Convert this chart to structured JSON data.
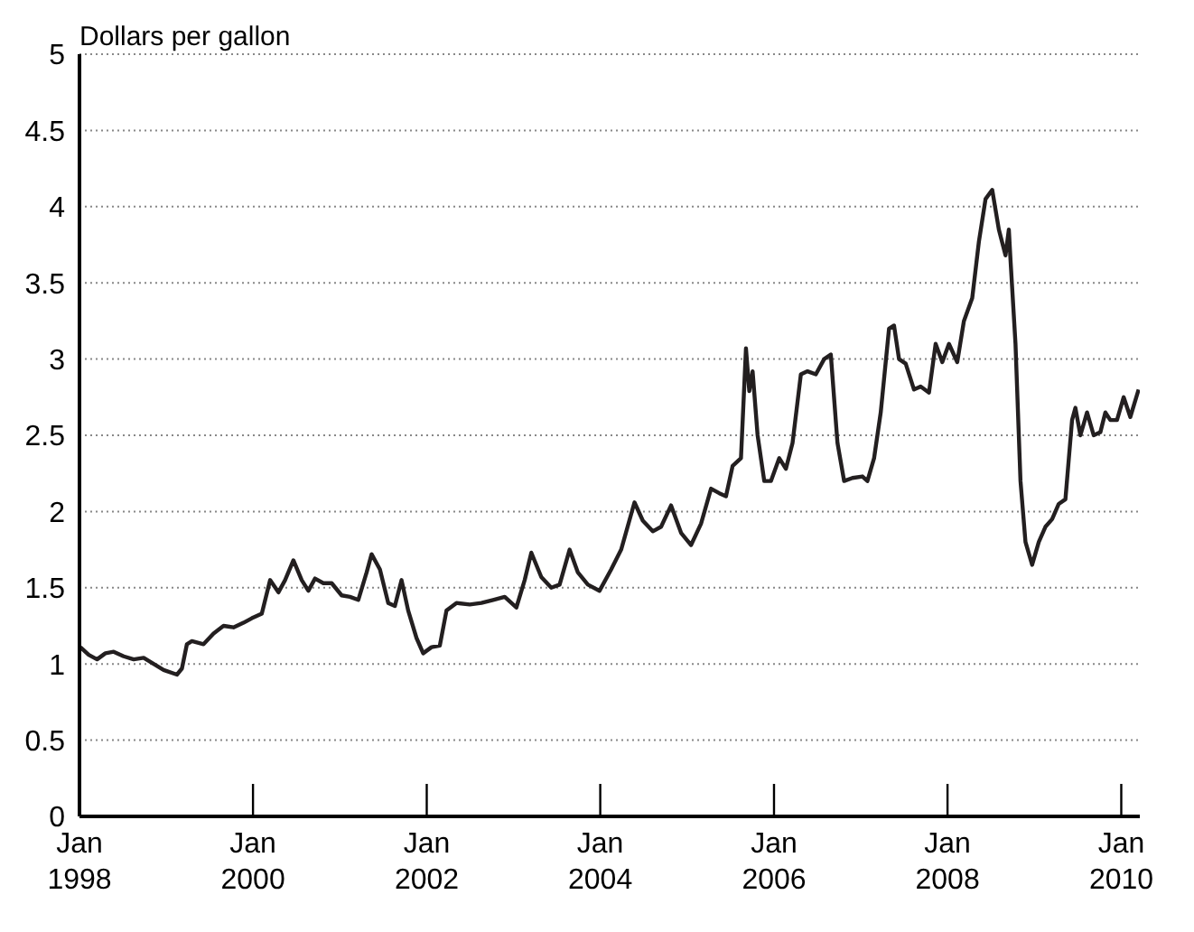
{
  "chart_data": {
    "type": "line",
    "ylabel": "Dollars per gallon",
    "x": [
      "1998-01-05",
      "1998-02-09",
      "1998-03-16",
      "1998-04-20",
      "1998-05-25",
      "1998-07-06",
      "1998-08-17",
      "1998-09-28",
      "1998-11-09",
      "1998-12-21",
      "1999-02-15",
      "1999-03-08",
      "1999-03-29",
      "1999-04-19",
      "1999-06-07",
      "1999-07-19",
      "1999-08-30",
      "1999-10-11",
      "1999-11-22",
      "1999-12-27",
      "2000-02-07",
      "2000-03-13",
      "2000-04-17",
      "2000-05-15",
      "2000-06-19",
      "2000-07-24",
      "2000-08-21",
      "2000-09-18",
      "2000-10-23",
      "2000-11-27",
      "2001-01-08",
      "2001-02-12",
      "2001-03-19",
      "2001-04-23",
      "2001-05-14",
      "2001-06-18",
      "2001-07-23",
      "2001-08-20",
      "2001-09-17",
      "2001-10-15",
      "2001-11-19",
      "2001-12-17",
      "2002-01-21",
      "2002-02-25",
      "2002-03-25",
      "2002-05-06",
      "2002-07-01",
      "2002-08-19",
      "2002-10-07",
      "2002-11-25",
      "2003-01-13",
      "2003-02-17",
      "2003-03-17",
      "2003-04-28",
      "2003-06-09",
      "2003-07-14",
      "2003-08-25",
      "2003-09-29",
      "2003-11-10",
      "2003-12-29",
      "2004-02-16",
      "2004-03-29",
      "2004-05-24",
      "2004-06-28",
      "2004-08-09",
      "2004-09-13",
      "2004-10-25",
      "2004-12-06",
      "2005-01-17",
      "2005-02-28",
      "2005-04-11",
      "2005-05-16",
      "2005-06-13",
      "2005-07-11",
      "2005-08-15",
      "2005-09-05",
      "2005-09-19",
      "2005-10-03",
      "2005-10-24",
      "2005-11-21",
      "2005-12-19",
      "2006-01-23",
      "2006-02-20",
      "2006-03-20",
      "2006-04-24",
      "2006-05-22",
      "2006-06-26",
      "2006-07-31",
      "2006-08-28",
      "2006-09-25",
      "2006-10-23",
      "2006-11-27",
      "2007-01-08",
      "2007-01-29",
      "2007-02-26",
      "2007-03-26",
      "2007-04-30",
      "2007-05-21",
      "2007-06-11",
      "2007-07-09",
      "2007-08-13",
      "2007-09-10",
      "2007-10-15",
      "2007-11-12",
      "2007-12-10",
      "2008-01-07",
      "2008-02-11",
      "2008-03-10",
      "2008-04-14",
      "2008-05-12",
      "2008-06-09",
      "2008-07-07",
      "2008-08-04",
      "2008-09-01",
      "2008-09-15",
      "2008-09-22",
      "2008-10-13",
      "2008-11-03",
      "2008-11-24",
      "2008-12-22",
      "2009-01-19",
      "2009-02-16",
      "2009-03-16",
      "2009-04-13",
      "2009-05-11",
      "2009-06-08",
      "2009-06-22",
      "2009-07-13",
      "2009-08-10",
      "2009-09-07",
      "2009-10-05",
      "2009-10-26",
      "2009-11-16",
      "2009-12-14",
      "2010-01-11",
      "2010-02-08",
      "2010-03-15"
    ],
    "series": [
      {
        "color": "#231f20",
        "values": [
          1.11,
          1.06,
          1.03,
          1.07,
          1.08,
          1.05,
          1.03,
          1.04,
          1.0,
          0.96,
          0.93,
          0.97,
          1.13,
          1.15,
          1.13,
          1.2,
          1.25,
          1.24,
          1.27,
          1.3,
          1.33,
          1.55,
          1.47,
          1.55,
          1.68,
          1.55,
          1.48,
          1.56,
          1.53,
          1.53,
          1.45,
          1.44,
          1.42,
          1.6,
          1.72,
          1.62,
          1.4,
          1.38,
          1.55,
          1.35,
          1.17,
          1.07,
          1.11,
          1.12,
          1.35,
          1.4,
          1.39,
          1.4,
          1.42,
          1.44,
          1.37,
          1.55,
          1.73,
          1.57,
          1.5,
          1.52,
          1.75,
          1.6,
          1.52,
          1.48,
          1.62,
          1.75,
          2.06,
          1.94,
          1.87,
          1.9,
          2.04,
          1.86,
          1.78,
          1.92,
          2.15,
          2.12,
          2.1,
          2.3,
          2.35,
          3.07,
          2.79,
          2.92,
          2.5,
          2.2,
          2.2,
          2.35,
          2.28,
          2.45,
          2.9,
          2.92,
          2.9,
          3.0,
          3.03,
          2.45,
          2.2,
          2.22,
          2.23,
          2.2,
          2.35,
          2.65,
          3.2,
          3.22,
          3.0,
          2.97,
          2.8,
          2.82,
          2.78,
          3.1,
          2.98,
          3.1,
          2.98,
          3.25,
          3.4,
          3.77,
          4.05,
          4.11,
          3.85,
          3.68,
          3.85,
          3.65,
          3.1,
          2.2,
          1.8,
          1.65,
          1.8,
          1.9,
          1.95,
          2.05,
          2.08,
          2.6,
          2.68,
          2.5,
          2.65,
          2.5,
          2.52,
          2.65,
          2.6,
          2.6,
          2.75,
          2.62,
          2.8
        ]
      }
    ],
    "xlim": [
      "1998-01-01",
      "2010-03-20"
    ],
    "xticks": [
      {
        "value": "1998-01-01",
        "label": "Jan\n1998"
      },
      {
        "value": "2000-01-01",
        "label": "Jan\n2000"
      },
      {
        "value": "2002-01-01",
        "label": "Jan\n2002"
      },
      {
        "value": "2004-01-01",
        "label": "Jan\n2004"
      },
      {
        "value": "2006-01-01",
        "label": "Jan\n2006"
      },
      {
        "value": "2008-01-01",
        "label": "Jan\n2008"
      },
      {
        "value": "2010-01-01",
        "label": "Jan\n2010"
      }
    ],
    "ylim": [
      0,
      5
    ],
    "yticks": [
      0,
      0.5,
      1,
      1.5,
      2,
      2.5,
      3,
      3.5,
      4,
      4.5,
      5
    ],
    "grid": "y",
    "legend": false,
    "marker": "none",
    "line_style": "solid"
  }
}
